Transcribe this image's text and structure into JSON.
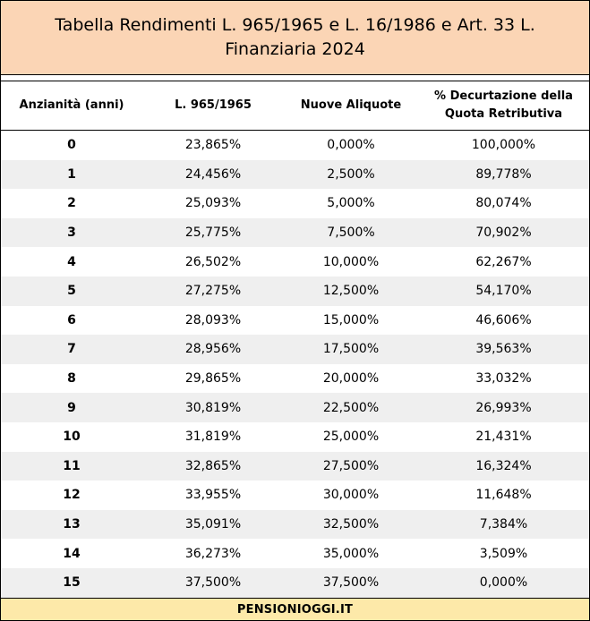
{
  "title": "Tabella Rendimenti L. 965/1965 e L. 16/1986 e Art. 33 L. Finanziaria 2024",
  "columns": [
    "Anzianità (anni)",
    "L. 965/1965",
    "Nuove Aliquote",
    "% Decurtazione della Quota Retributiva"
  ],
  "rows": [
    [
      "0",
      "23,865%",
      "0,000%",
      "100,000%"
    ],
    [
      "1",
      "24,456%",
      "2,500%",
      "89,778%"
    ],
    [
      "2",
      "25,093%",
      "5,000%",
      "80,074%"
    ],
    [
      "3",
      "25,775%",
      "7,500%",
      "70,902%"
    ],
    [
      "4",
      "26,502%",
      "10,000%",
      "62,267%"
    ],
    [
      "5",
      "27,275%",
      "12,500%",
      "54,170%"
    ],
    [
      "6",
      "28,093%",
      "15,000%",
      "46,606%"
    ],
    [
      "7",
      "28,956%",
      "17,500%",
      "39,563%"
    ],
    [
      "8",
      "29,865%",
      "20,000%",
      "33,032%"
    ],
    [
      "9",
      "30,819%",
      "22,500%",
      "26,993%"
    ],
    [
      "10",
      "31,819%",
      "25,000%",
      "21,431%"
    ],
    [
      "11",
      "32,865%",
      "27,500%",
      "16,324%"
    ],
    [
      "12",
      "33,955%",
      "30,000%",
      "11,648%"
    ],
    [
      "13",
      "35,091%",
      "32,500%",
      "7,384%"
    ],
    [
      "14",
      "36,273%",
      "35,000%",
      "3,509%"
    ],
    [
      "15",
      "37,500%",
      "37,500%",
      "0,000%"
    ]
  ],
  "footer": "PENSIONIOGGI.IT",
  "colors": {
    "title_bg": "#fbd5b5",
    "footer_bg": "#fde9a9",
    "alt_row_bg": "#efefef"
  }
}
